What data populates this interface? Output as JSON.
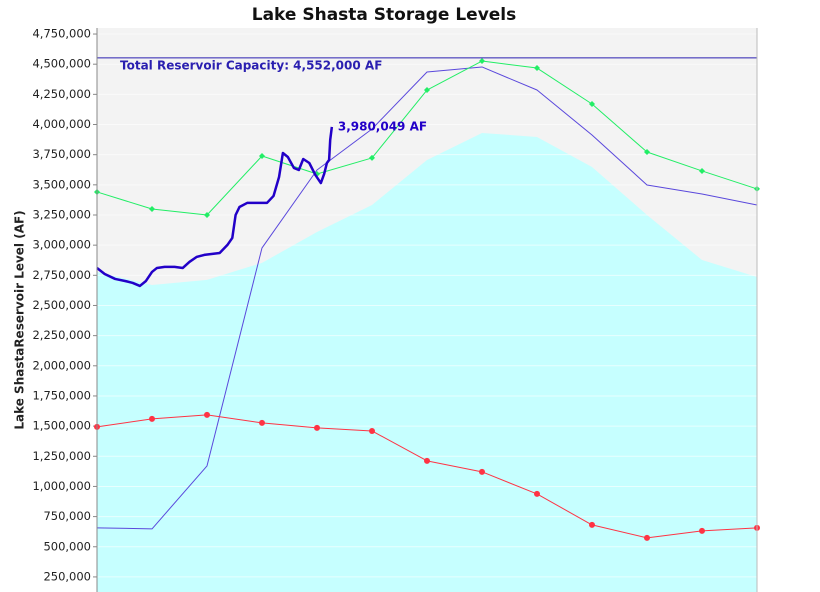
{
  "chart_data": {
    "type": "line",
    "title": "Lake Shasta Storage Levels",
    "y_label": "Lake ShastaReservoir Level (AF)",
    "x": [
      0,
      1,
      2,
      3,
      4,
      5,
      6,
      7,
      8,
      9,
      10,
      11,
      12
    ],
    "xlim": [
      0,
      12
    ],
    "ylim": [
      125000,
      4800000
    ],
    "yticks": [
      {
        "value": 250000,
        "label": "250,000"
      },
      {
        "value": 500000,
        "label": "500,000"
      },
      {
        "value": 750000,
        "label": "750,000"
      },
      {
        "value": 1000000,
        "label": "1,000,000"
      },
      {
        "value": 1250000,
        "label": "1,250,000"
      },
      {
        "value": 1500000,
        "label": "1,500,000"
      },
      {
        "value": 1750000,
        "label": "1,750,000"
      },
      {
        "value": 2000000,
        "label": "2,000,000"
      },
      {
        "value": 2250000,
        "label": "2,250,000"
      },
      {
        "value": 2500000,
        "label": "2,500,000"
      },
      {
        "value": 2750000,
        "label": "2,750,000"
      },
      {
        "value": 3000000,
        "label": "3,000,000"
      },
      {
        "value": 3250000,
        "label": "3,250,000"
      },
      {
        "value": 3500000,
        "label": "3,500,000"
      },
      {
        "value": 3750000,
        "label": "3,750,000"
      },
      {
        "value": 4000000,
        "label": "4,000,000"
      },
      {
        "value": 4250000,
        "label": "4,250,000"
      },
      {
        "value": 4500000,
        "label": "4,500,000"
      },
      {
        "value": 4750000,
        "label": "4,750,000"
      }
    ],
    "grid": true,
    "background": "#f3f3f3",
    "reference_line": {
      "value": 4552000,
      "label": "Total Reservoir Capacity: 4,552,000 AF",
      "color": "#2a1fb0"
    },
    "series": [
      {
        "color": "#c6ffff",
        "fill": true,
        "values": [
          2778000,
          2670000,
          2712000,
          2853000,
          3109000,
          3333000,
          3706000,
          3930000,
          3897000,
          3648000,
          3250000,
          2877000,
          2736000
        ]
      },
      {
        "color": "#5a48dc",
        "width": 1,
        "values": [
          657000,
          648000,
          1170000,
          2977000,
          3623000,
          3963000,
          4435000,
          4477000,
          4286000,
          3913000,
          3499000,
          3424000,
          3333000
        ]
      },
      {
        "color": "#22ee66",
        "width": 1,
        "marker": "diamond",
        "values": [
          3441000,
          3300000,
          3250000,
          3739000,
          3590000,
          3723000,
          4286000,
          4526000,
          4468000,
          4170000,
          3772000,
          3615000,
          3466000
        ]
      },
      {
        "color": "#ff3344",
        "width": 1,
        "marker": "circle",
        "values": [
          1494000,
          1560000,
          1593000,
          1527000,
          1485000,
          1460000,
          1212000,
          1121000,
          938000,
          681000,
          574000,
          632000,
          657000
        ]
      },
      {
        "color": "#2200c8",
        "width": 2.5,
        "x": [
          0,
          0.14,
          0.33,
          0.51,
          0.65,
          0.78,
          0.89,
          1.0,
          1.09,
          1.23,
          1.41,
          1.56,
          1.68,
          1.81,
          1.95,
          2.23,
          2.37,
          2.46,
          2.52,
          2.59,
          2.73,
          2.91,
          3.09,
          3.21,
          3.31,
          3.38,
          3.47,
          3.58,
          3.67,
          3.75,
          3.86,
          3.97,
          4.07,
          4.13,
          4.18,
          4.22,
          4.24,
          4.27
        ],
        "values": [
          2811000,
          2761000,
          2720000,
          2703000,
          2687000,
          2662000,
          2703000,
          2778000,
          2811000,
          2820000,
          2820000,
          2811000,
          2861000,
          2902000,
          2919000,
          2935000,
          3001000,
          3060000,
          3250000,
          3316000,
          3350000,
          3350000,
          3350000,
          3408000,
          3565000,
          3764000,
          3731000,
          3640000,
          3623000,
          3714000,
          3681000,
          3582000,
          3515000,
          3590000,
          3681000,
          3706000,
          3872000,
          3980049
        ],
        "end_label": "3,980,049 AF"
      }
    ]
  }
}
